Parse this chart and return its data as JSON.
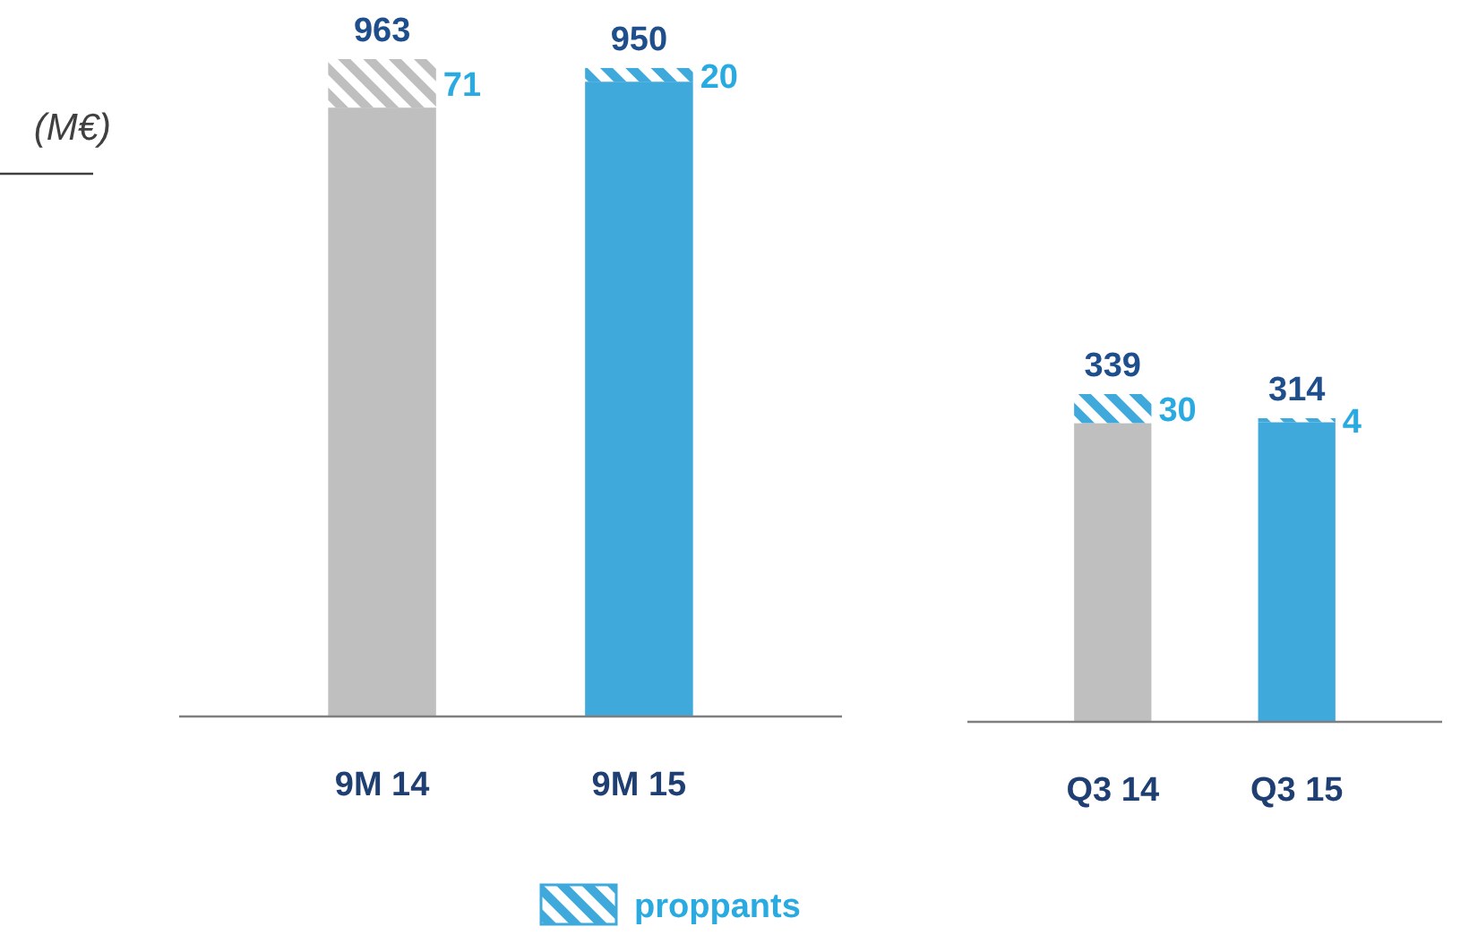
{
  "chart_data": [
    {
      "type": "bar",
      "stacked": true,
      "ylabel": "(M€)",
      "categories": [
        "9M 14",
        "9M 15"
      ],
      "legend": "bottom",
      "totals": [
        "963",
        "950"
      ],
      "series": [
        {
          "colors": [
            "#bfbfbf",
            "#3fa9dc"
          ],
          "values": [
            892,
            930
          ]
        },
        {
          "name": "proppants",
          "color": "#3fa9dc",
          "colors": [
            "#bfbfbf",
            "#3fa9dc"
          ],
          "values": [
            71,
            20
          ],
          "value_labels": [
            "71",
            "20"
          ]
        }
      ]
    },
    {
      "type": "bar",
      "stacked": true,
      "categories": [
        "Q3 14",
        "Q3 15"
      ],
      "totals": [
        "339",
        "314"
      ],
      "series": [
        {
          "colors": [
            "#bfbfbf",
            "#3fa9dc"
          ],
          "values": [
            309,
            310
          ]
        },
        {
          "color": "#3fa9dc",
          "colors": [
            "#3fa9dc",
            "#3fa9dc"
          ],
          "values": [
            30,
            4
          ],
          "value_labels": [
            "30",
            "4"
          ]
        }
      ]
    }
  ]
}
